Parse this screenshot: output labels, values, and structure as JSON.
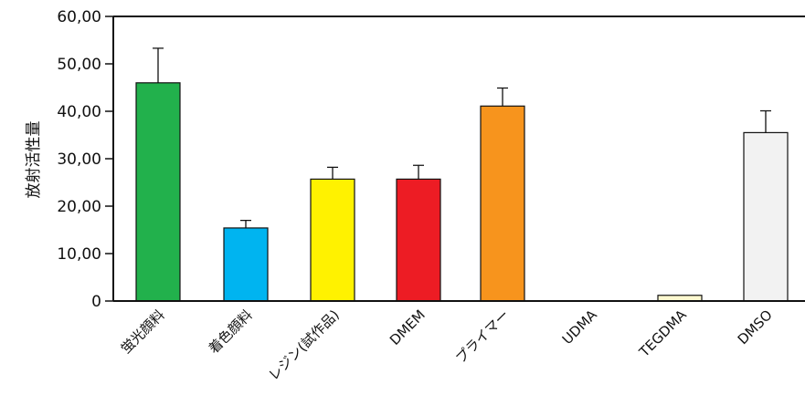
{
  "chart_data": {
    "type": "bar",
    "ylabel": "放射活性量",
    "ylim": [
      0,
      60
    ],
    "y_ticks": [
      "0",
      "10,00",
      "20,00",
      "30,00",
      "40,00",
      "50,00",
      "60,00"
    ],
    "categories": [
      "蛍光顔料",
      "着色顔料",
      "レジン(試作品)",
      "DMEM",
      "プライマー",
      "UDMA",
      "TEGDMA",
      "DMSO"
    ],
    "values": [
      46.0,
      15.4,
      25.7,
      25.7,
      41.1,
      0,
      1.2,
      35.5
    ],
    "errors": [
      7.3,
      1.6,
      2.5,
      2.9,
      3.8,
      0,
      0,
      4.6
    ],
    "colors": [
      "#22b14c",
      "#00b4f0",
      "#fff200",
      "#ed1c24",
      "#f7941d",
      "#ffffff",
      "#fff9d0",
      "#f2f2f2"
    ],
    "grid": false,
    "legend": "none"
  }
}
